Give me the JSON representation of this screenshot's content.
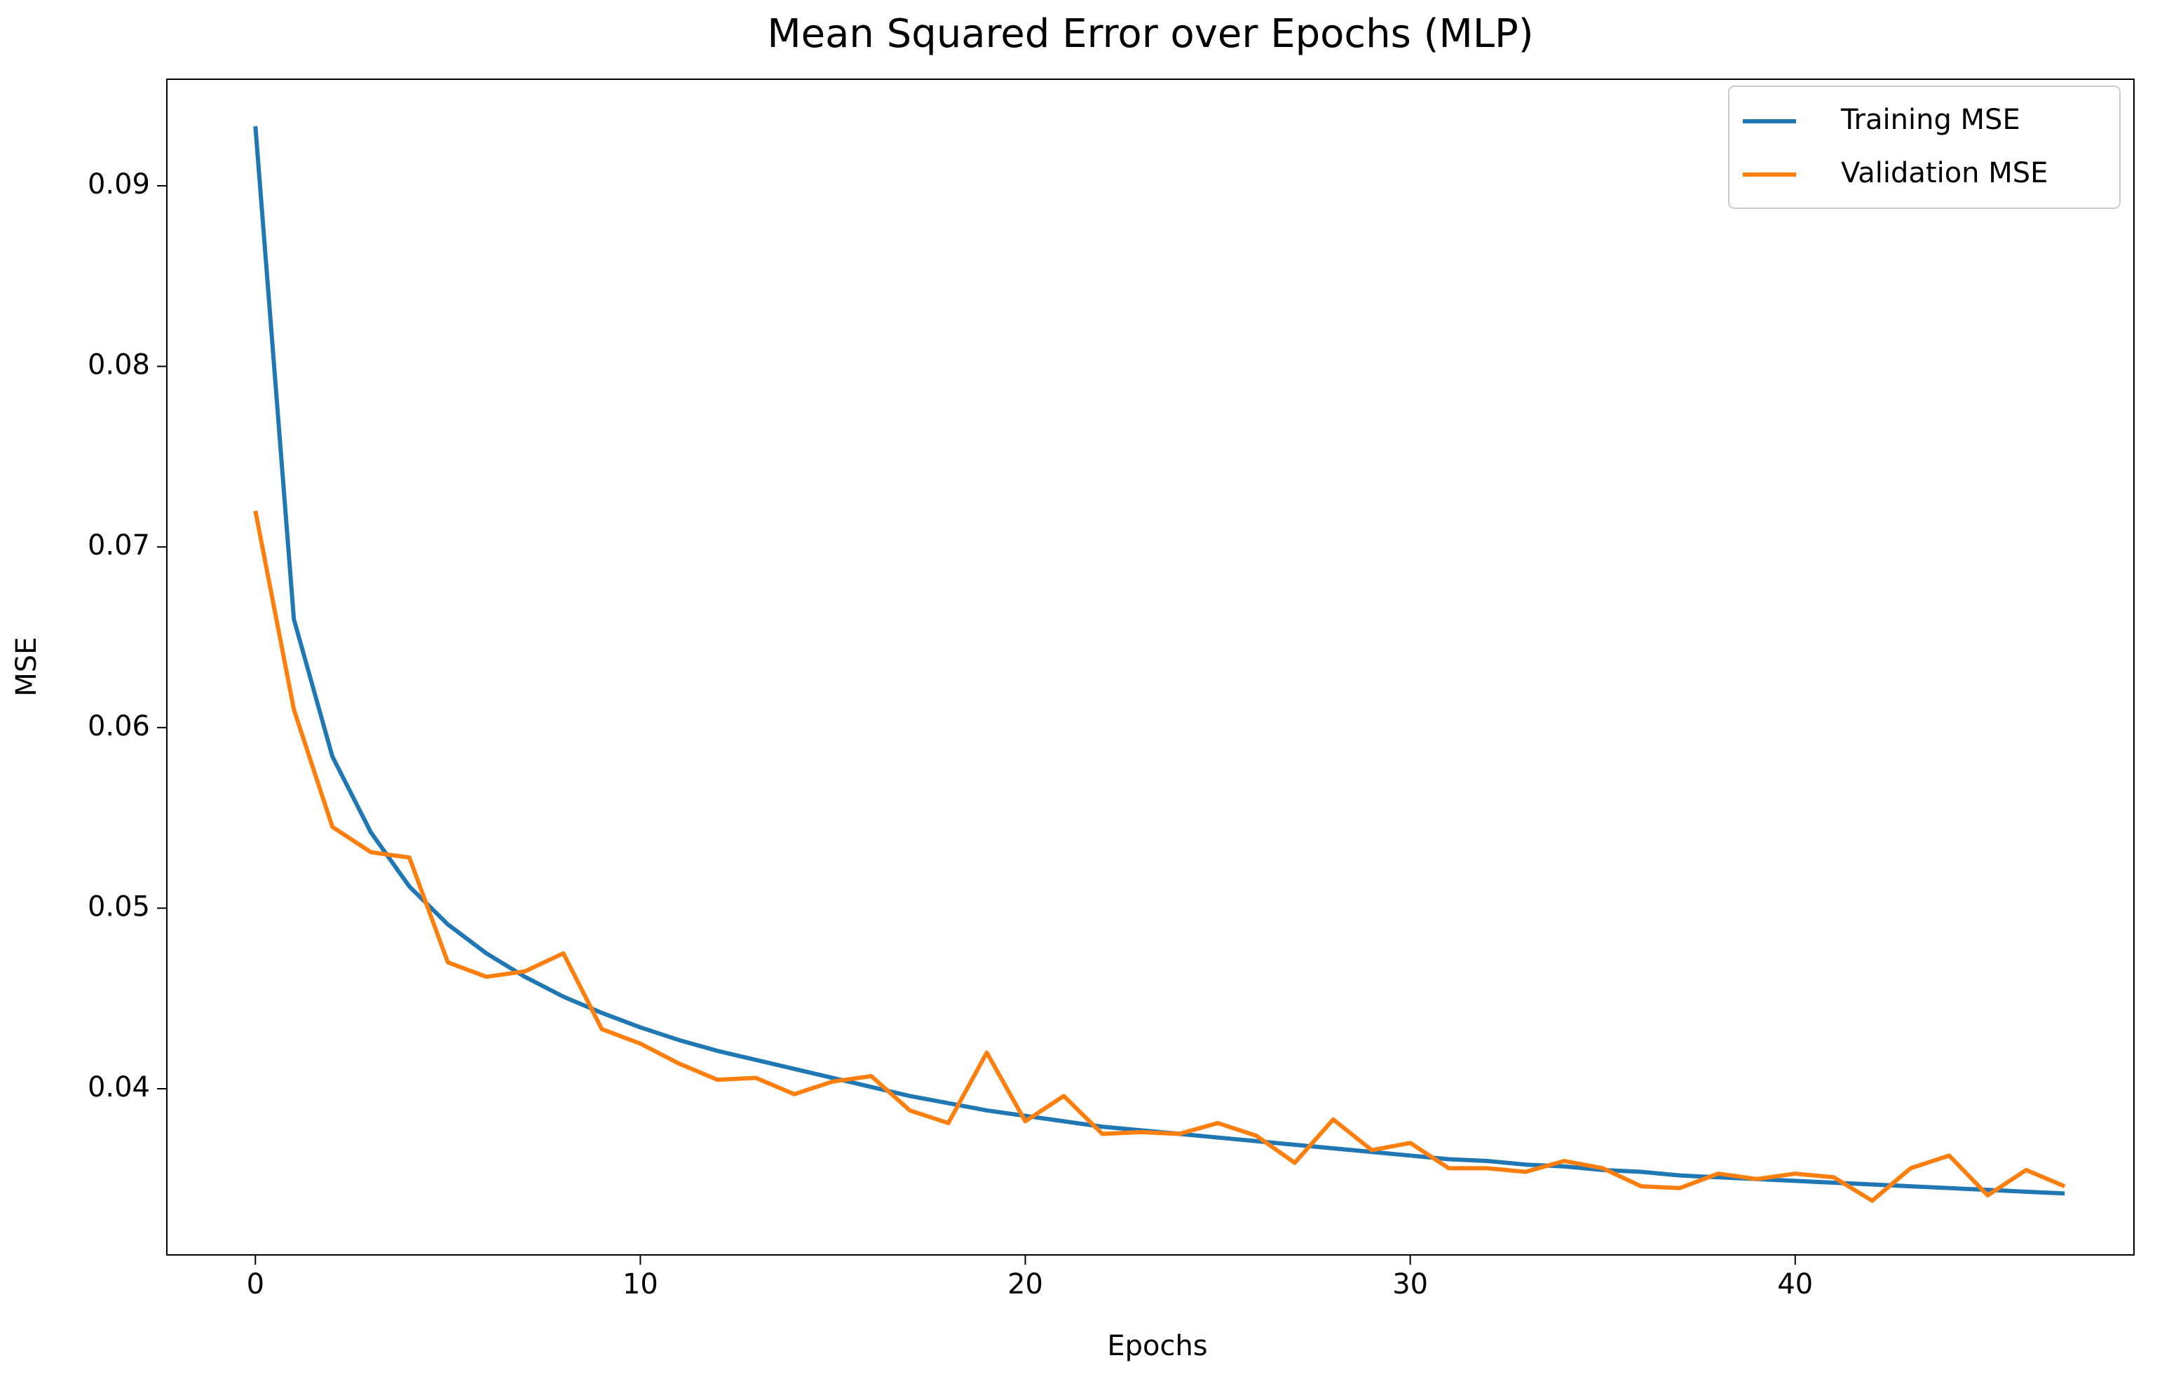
{
  "chart_data": {
    "type": "line",
    "title": "Mean Squared Error over Epochs (MLP)",
    "x_label": "Epochs",
    "y_label": "MSE",
    "x": [
      0,
      1,
      2,
      3,
      4,
      5,
      6,
      7,
      8,
      9,
      10,
      11,
      12,
      13,
      14,
      15,
      16,
      17,
      18,
      19,
      20,
      21,
      22,
      23,
      24,
      25,
      26,
      27,
      28,
      29,
      30,
      31,
      32,
      33,
      34,
      35,
      36,
      37,
      38,
      39,
      40,
      41,
      42,
      43,
      44,
      45,
      46,
      47
    ],
    "series": [
      {
        "name": "Training MSE",
        "color": "#1f77b4",
        "values": [
          0.0933,
          0.066,
          0.0584,
          0.0542,
          0.0512,
          0.0491,
          0.0475,
          0.0462,
          0.0451,
          0.0442,
          0.0434,
          0.0427,
          0.0421,
          0.0416,
          0.0411,
          0.0406,
          0.0401,
          0.0396,
          0.0392,
          0.0388,
          0.0385,
          0.0382,
          0.0379,
          0.0377,
          0.0375,
          0.0373,
          0.0371,
          0.0369,
          0.0367,
          0.0365,
          0.0363,
          0.0361,
          0.036,
          0.0358,
          0.0357,
          0.0355,
          0.0354,
          0.0352,
          0.0351,
          0.035,
          0.0349,
          0.0348,
          0.0347,
          0.0346,
          0.0345,
          0.0344,
          0.0343,
          0.0342
        ]
      },
      {
        "name": "Validation MSE",
        "color": "#ff7f0e",
        "values": [
          0.072,
          0.061,
          0.0545,
          0.0531,
          0.0528,
          0.047,
          0.0462,
          0.0465,
          0.0475,
          0.0433,
          0.0425,
          0.0414,
          0.0405,
          0.0406,
          0.0397,
          0.0404,
          0.0407,
          0.0388,
          0.0381,
          0.042,
          0.0382,
          0.0396,
          0.0375,
          0.0376,
          0.0375,
          0.0381,
          0.0374,
          0.0359,
          0.0383,
          0.0366,
          0.037,
          0.0356,
          0.0356,
          0.0354,
          0.036,
          0.0356,
          0.0346,
          0.0345,
          0.0353,
          0.035,
          0.0353,
          0.0351,
          0.0338,
          0.0356,
          0.0363,
          0.0341,
          0.0355,
          0.0346
        ]
      }
    ],
    "xlim": [
      -2.3,
      48.8
    ],
    "ylim": [
      0.0308,
      0.0959
    ],
    "xticks": [
      0,
      10,
      20,
      30,
      40
    ],
    "yticks": [
      0.04,
      0.05,
      0.06,
      0.07,
      0.08,
      0.09
    ],
    "legend": "upper right"
  }
}
